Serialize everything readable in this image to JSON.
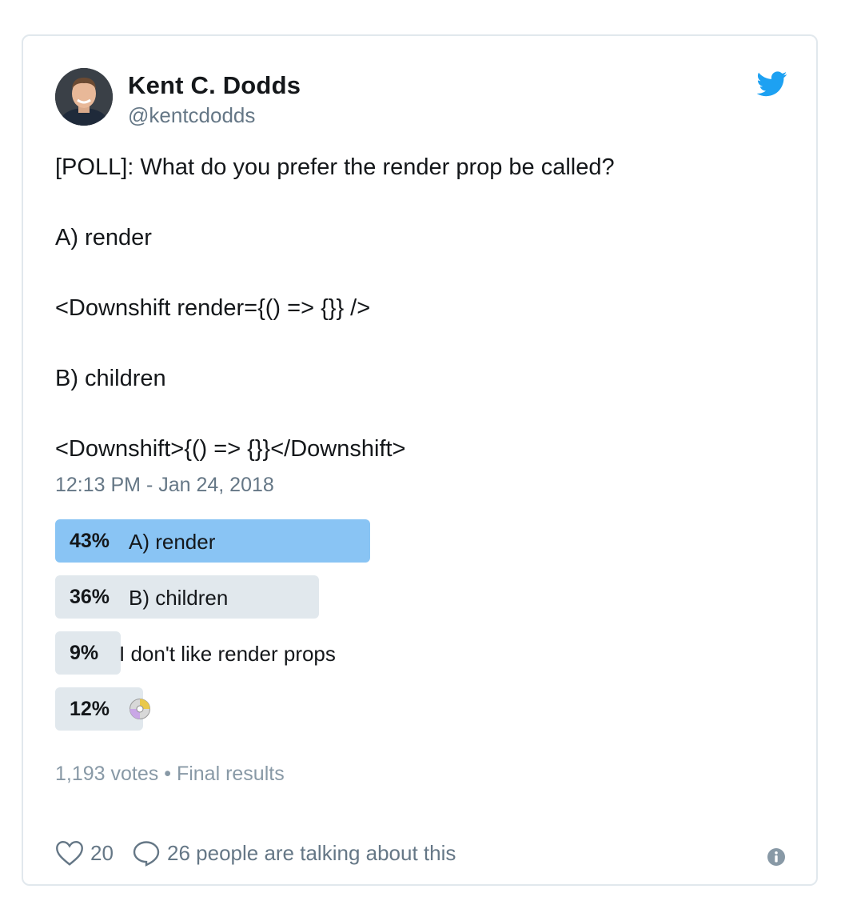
{
  "author": {
    "name": "Kent C. Dodds",
    "handle": "@kentcdodds"
  },
  "icons": {
    "brand": "twitter-bird-icon",
    "like": "heart-icon",
    "reply": "speech-bubble-icon",
    "info": "info-icon",
    "emoji": "optical-disc-icon"
  },
  "colors": {
    "brand_blue": "#1da1f2",
    "winner_bar": "#89c4f4",
    "bar": "#e1e8ed",
    "muted_text": "#657786"
  },
  "tweet": {
    "lines": [
      "[POLL]: What do you prefer the render prop be called?",
      "A) render",
      "<Downshift render={() => {}} />",
      "B) children",
      "<Downshift>{() => {}}</Downshift>"
    ],
    "timestamp": "12:13 PM - Jan 24, 2018"
  },
  "poll": {
    "options": [
      {
        "percent_label": "43%",
        "percent": 43,
        "label": "A) render",
        "winner": true
      },
      {
        "percent_label": "36%",
        "percent": 36,
        "label": "B) children",
        "winner": false
      },
      {
        "percent_label": "9%",
        "percent": 9,
        "label": "I don't like render props",
        "winner": false
      },
      {
        "percent_label": "12%",
        "percent": 12,
        "label": "",
        "emoji": true,
        "winner": false
      }
    ],
    "votes": "1,193 votes",
    "separator": "•",
    "status": "Final results"
  },
  "actions": {
    "likes": "20",
    "talking": "26 people are talking about this"
  }
}
